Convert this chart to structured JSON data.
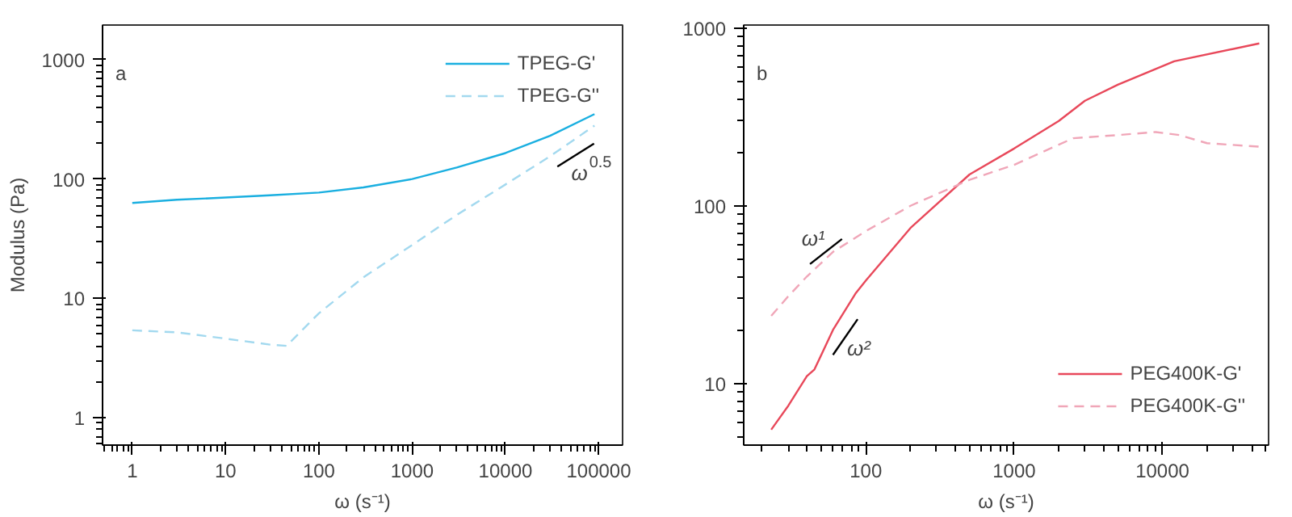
{
  "chart_data": [
    {
      "type": "line",
      "title": null,
      "xlabel": "ω (s⁻¹)",
      "ylabel": "Modulus (Pa)",
      "log": "xy",
      "legend": "top right",
      "grid": false,
      "xlim": [
        0.48,
        180000
      ],
      "ylim": [
        0.59,
        1950
      ],
      "xticks": [
        1,
        10,
        100,
        1000,
        10000,
        100000
      ],
      "yticks": [
        1,
        10,
        100,
        1000
      ],
      "annotations": [
        "a",
        "ω$^{0.5}$"
      ],
      "series": [
        {
          "name": "TPEG-G'",
          "color": "#1aafe0",
          "line_style": "solid",
          "x": [
            1,
            3,
            10,
            30,
            100,
            300,
            1000,
            3000,
            10000,
            30000,
            90000
          ],
          "values": [
            63,
            67,
            70,
            73,
            77,
            85,
            100,
            125,
            165,
            230,
            350
          ]
        },
        {
          "name": "TPEG-G''",
          "color": "#a3d9ef",
          "line_style": "dashed",
          "x": [
            1,
            3,
            10,
            30,
            45,
            100,
            300,
            1000,
            3000,
            10000,
            30000,
            90000
          ],
          "values": [
            5.4,
            5.2,
            4.6,
            4.1,
            4.0,
            7.5,
            15,
            28,
            50,
            90,
            155,
            280
          ]
        },
        {
          "color": "#000000",
          "line_style": "solid",
          "x": [
            36000,
            89000
          ],
          "values": [
            127,
            198
          ]
        }
      ]
    },
    {
      "type": "line",
      "title": null,
      "xlabel": "ω (s⁻¹)",
      "log": "xy",
      "legend": "bottom right",
      "grid": false,
      "xlim": [
        15,
        52000
      ],
      "ylim": [
        4.5,
        1040
      ],
      "xticks": [
        100,
        1000,
        10000
      ],
      "yticks": [
        10,
        100,
        1000
      ],
      "annotations": [
        "b",
        "ω¹",
        "ω²"
      ],
      "series": [
        {
          "name": "PEG400K-G'",
          "color": "#e8485a",
          "line_style": "solid",
          "x": [
            23,
            30,
            40,
            45,
            60,
            85,
            100,
            200,
            500,
            1000,
            2000,
            3000,
            5000,
            12000,
            45000
          ],
          "values": [
            5.5,
            7.5,
            11,
            12,
            20,
            32,
            38,
            75,
            150,
            210,
            300,
            390,
            480,
            650,
            820
          ]
        },
        {
          "name": "PEG400K-G''",
          "color": "#f0a6b8",
          "line_style": "dashed",
          "x": [
            23,
            30,
            40,
            60,
            100,
            200,
            500,
            1000,
            2500,
            5000,
            9000,
            13000,
            20000,
            45000
          ],
          "values": [
            24,
            31,
            40,
            55,
            72,
            100,
            140,
            170,
            240,
            250,
            260,
            250,
            225,
            215
          ]
        },
        {
          "color": "#000000",
          "line_style": "solid",
          "x": [
            42,
            69
          ],
          "values": [
            47,
            65
          ]
        },
        {
          "color": "#000000",
          "line_style": "solid",
          "x": [
            60,
            88
          ],
          "values": [
            14.5,
            23
          ]
        }
      ]
    }
  ]
}
